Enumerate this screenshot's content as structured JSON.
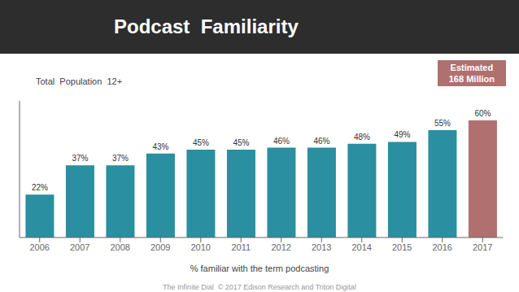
{
  "chart_data": {
    "type": "bar",
    "title": "Podcast  Familiarity",
    "subtitle": "Total  Population  12+",
    "xlabel": "% familiar with the term podcasting",
    "annotations": [
      "Estimated\n168 Million",
      "The Infinite Dial  © 2017 Edison Research and Triton Digital"
    ],
    "categories": [
      "2006",
      "2007",
      "2008",
      "2009",
      "2010",
      "2011",
      "2012",
      "2013",
      "2014",
      "2015",
      "2016",
      "2017"
    ],
    "values": [
      22,
      37,
      37,
      43,
      45,
      45,
      46,
      46,
      48,
      49,
      55,
      60
    ],
    "value_labels": [
      "22%",
      "37%",
      "37%",
      "43%",
      "45%",
      "45%",
      "46%",
      "46%",
      "48%",
      "49%",
      "55%",
      "60%"
    ],
    "colors": [
      "#2A8FA0",
      "#2A8FA0",
      "#2A8FA0",
      "#2A8FA0",
      "#2A8FA0",
      "#2A8FA0",
      "#2A8FA0",
      "#2A8FA0",
      "#2A8FA0",
      "#2A8FA0",
      "#2A8FA0",
      "#B07070"
    ],
    "ylim": [
      0,
      70
    ],
    "grid": false,
    "data_labels": true,
    "tick_labels": "x"
  }
}
